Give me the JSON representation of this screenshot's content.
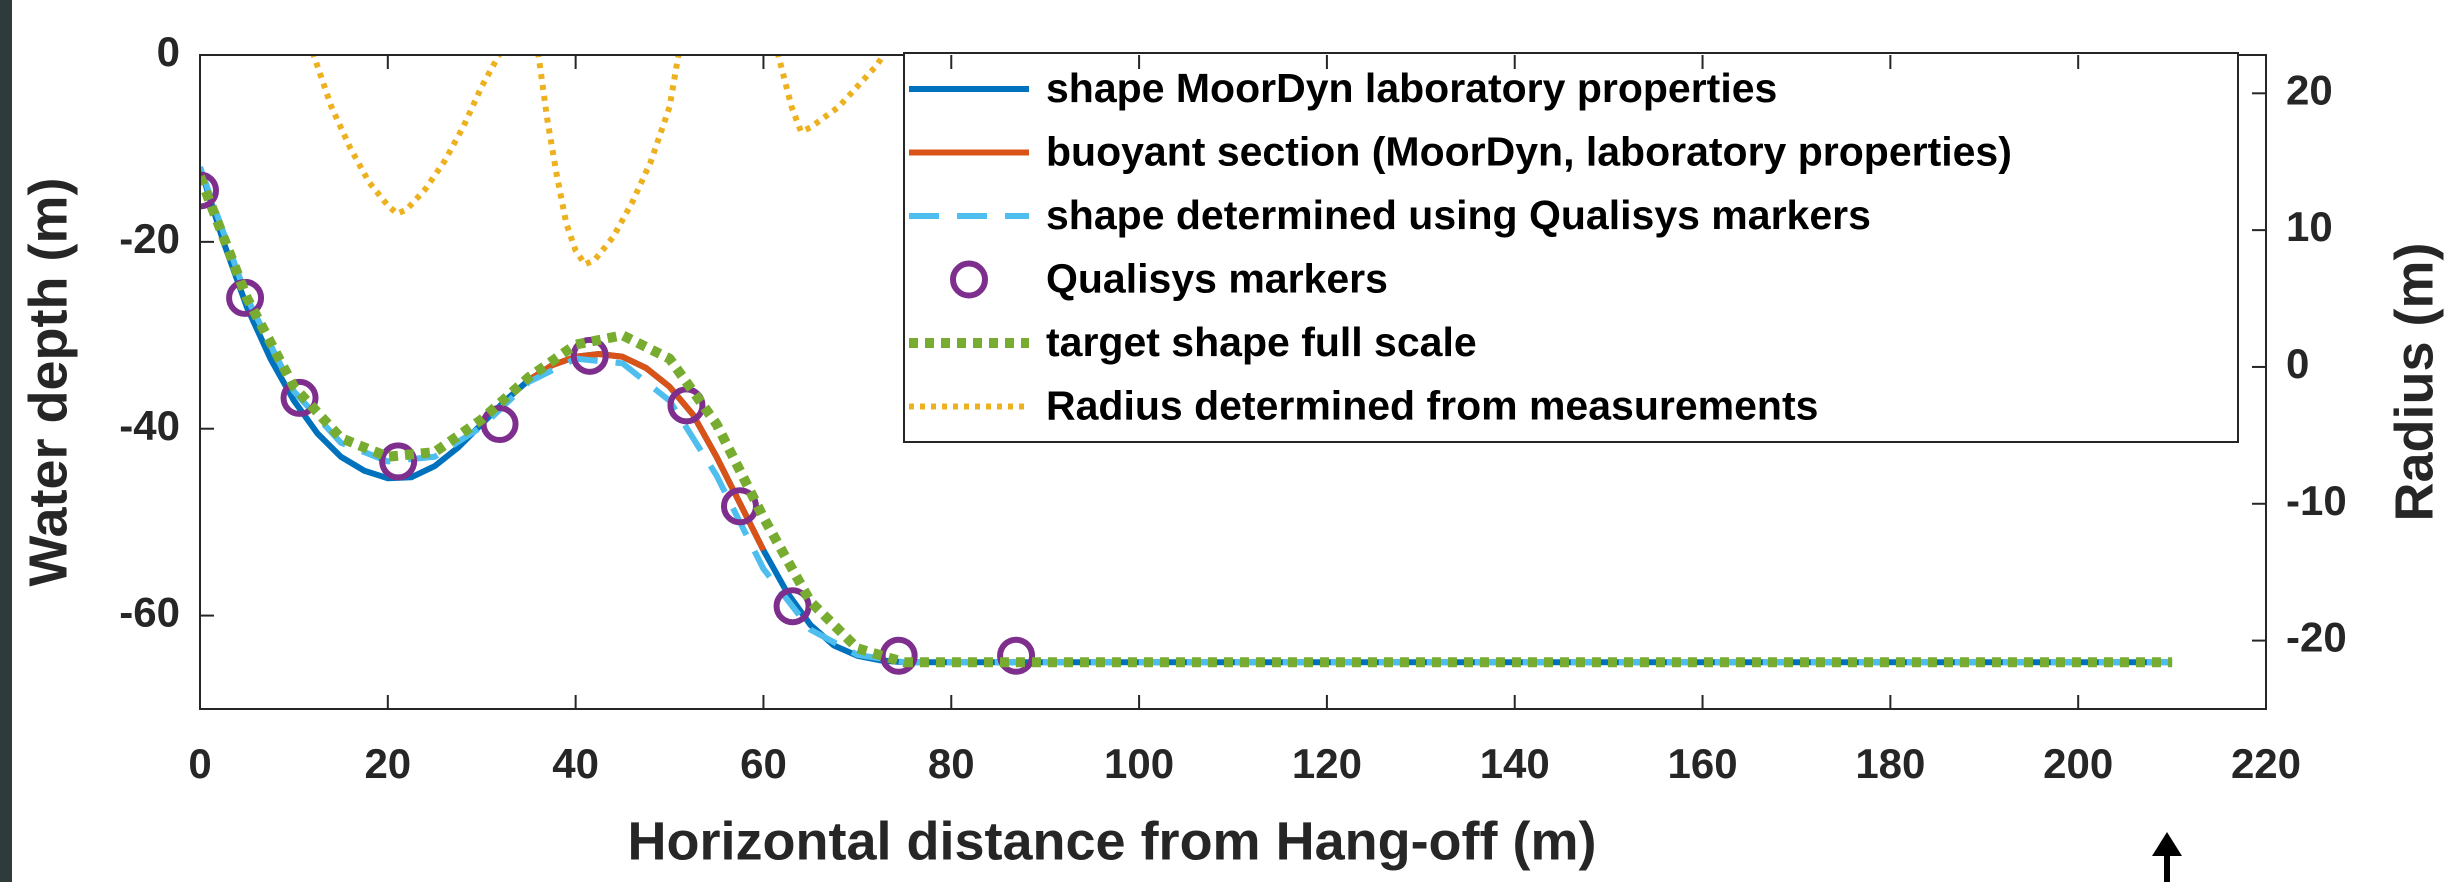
{
  "chart_data": {
    "type": "line",
    "xlabel": "Horizontal distance from Hang-off (m)",
    "ylabel": "Water depth (m)",
    "y2label": "Radius (m)",
    "xlim": [
      0,
      220
    ],
    "xticks": [
      0,
      20,
      40,
      60,
      80,
      100,
      120,
      140,
      160,
      180,
      200,
      220
    ],
    "ylim": [
      -70,
      0
    ],
    "yticks": [
      -60,
      -40,
      -20,
      0
    ],
    "y2lim": [
      -25,
      22.8
    ],
    "y2ticks": [
      -20,
      -10,
      0,
      10,
      20
    ],
    "grid": false,
    "legend": "upper right",
    "series": [
      {
        "name": "shape MoorDyn laboratory properties",
        "color": "#0072bd",
        "line_style": "solid",
        "axis": "y",
        "x": [
          0,
          2.5,
          5,
          7.5,
          10,
          12.5,
          15,
          17.5,
          20,
          22.5,
          25,
          27.5,
          30,
          32.5,
          35,
          37.5,
          40,
          42.5,
          45,
          47.5,
          50,
          52.5,
          55,
          57.5,
          60,
          62.5,
          65,
          67.5,
          70,
          72.5,
          75,
          80,
          210
        ],
        "values": [
          -12,
          -20,
          -27,
          -32.5,
          -37,
          -40.5,
          -43,
          -44.5,
          -45.3,
          -45.2,
          -44,
          -42,
          -39.5,
          -37,
          -34.8,
          -33.2,
          -32.3,
          -32,
          -32.3,
          -33.5,
          -35.5,
          -38.5,
          -43,
          -48,
          -53,
          -57.5,
          -61,
          -63.2,
          -64.3,
          -64.8,
          -65,
          -65,
          -65
        ]
      },
      {
        "name": "buoyant section (MoorDyn, laboratory properties)",
        "color": "#d95319",
        "line_style": "solid",
        "axis": "y",
        "x": [
          35,
          37.5,
          40,
          42.5,
          45,
          47.5,
          50,
          52.5,
          55,
          57.5,
          60
        ],
        "values": [
          -34.8,
          -33.2,
          -32.3,
          -32,
          -32.3,
          -33.5,
          -35.5,
          -38.5,
          -43,
          -48,
          -53
        ]
      },
      {
        "name": "shape determined using Qualisys markers",
        "color": "#4dbeee",
        "line_style": "dashed",
        "axis": "y",
        "x": [
          0,
          5,
          10,
          15,
          20,
          25,
          30,
          35,
          40,
          45,
          50,
          55,
          60,
          65,
          70,
          75,
          210
        ],
        "values": [
          -12,
          -26,
          -36,
          -41.5,
          -43.5,
          -43,
          -39.8,
          -35,
          -32.5,
          -33,
          -37,
          -45,
          -55,
          -61.5,
          -64.2,
          -65,
          -65
        ]
      },
      {
        "name": "Qualisys markers",
        "color": "#7e2f8e",
        "line_style": "none",
        "marker": "circle",
        "axis": "y",
        "x": [
          0,
          4.8,
          10.6,
          21.1,
          31.9,
          41.5,
          51.8,
          57.5,
          63.1,
          74.4,
          86.9
        ],
        "values": [
          -14.5,
          -26,
          -36.7,
          -43.5,
          -39.5,
          -32.2,
          -37.5,
          -48.3,
          -59,
          -64.3,
          -64.3
        ]
      },
      {
        "name": "target shape full scale",
        "color": "#77ac30",
        "line_style": "dotted",
        "axis": "y",
        "x": [
          0,
          5,
          10,
          15,
          20,
          25,
          30,
          35,
          40,
          45,
          50,
          55,
          60,
          65,
          70,
          75,
          210
        ],
        "values": [
          -13,
          -26,
          -35.5,
          -41,
          -43,
          -42.5,
          -39,
          -34.5,
          -31,
          -30,
          -32.5,
          -39.5,
          -49.5,
          -58.5,
          -63.5,
          -65,
          -65
        ]
      },
      {
        "name": "Radius determined from measurements",
        "color": "#edb120",
        "line_style": "fine-dotted",
        "axis": "y2",
        "x": [
          12,
          14,
          16,
          18,
          20,
          21,
          22,
          24,
          26,
          28,
          30,
          32,
          34,
          36,
          37,
          38,
          39,
          40,
          41,
          42,
          44,
          46,
          48,
          50,
          51,
          56,
          61.5,
          63,
          64,
          65,
          66,
          68,
          70,
          72,
          73
        ],
        "values": [
          23,
          19,
          16,
          13.5,
          11.8,
          11.2,
          11.5,
          13,
          15,
          17.5,
          20.5,
          23,
          null,
          23,
          18,
          14,
          10.5,
          8.5,
          7.5,
          7.8,
          9.5,
          12,
          15,
          19,
          23,
          null,
          23,
          19,
          17.2,
          17.5,
          18,
          19,
          20.5,
          22,
          23
        ]
      }
    ]
  }
}
